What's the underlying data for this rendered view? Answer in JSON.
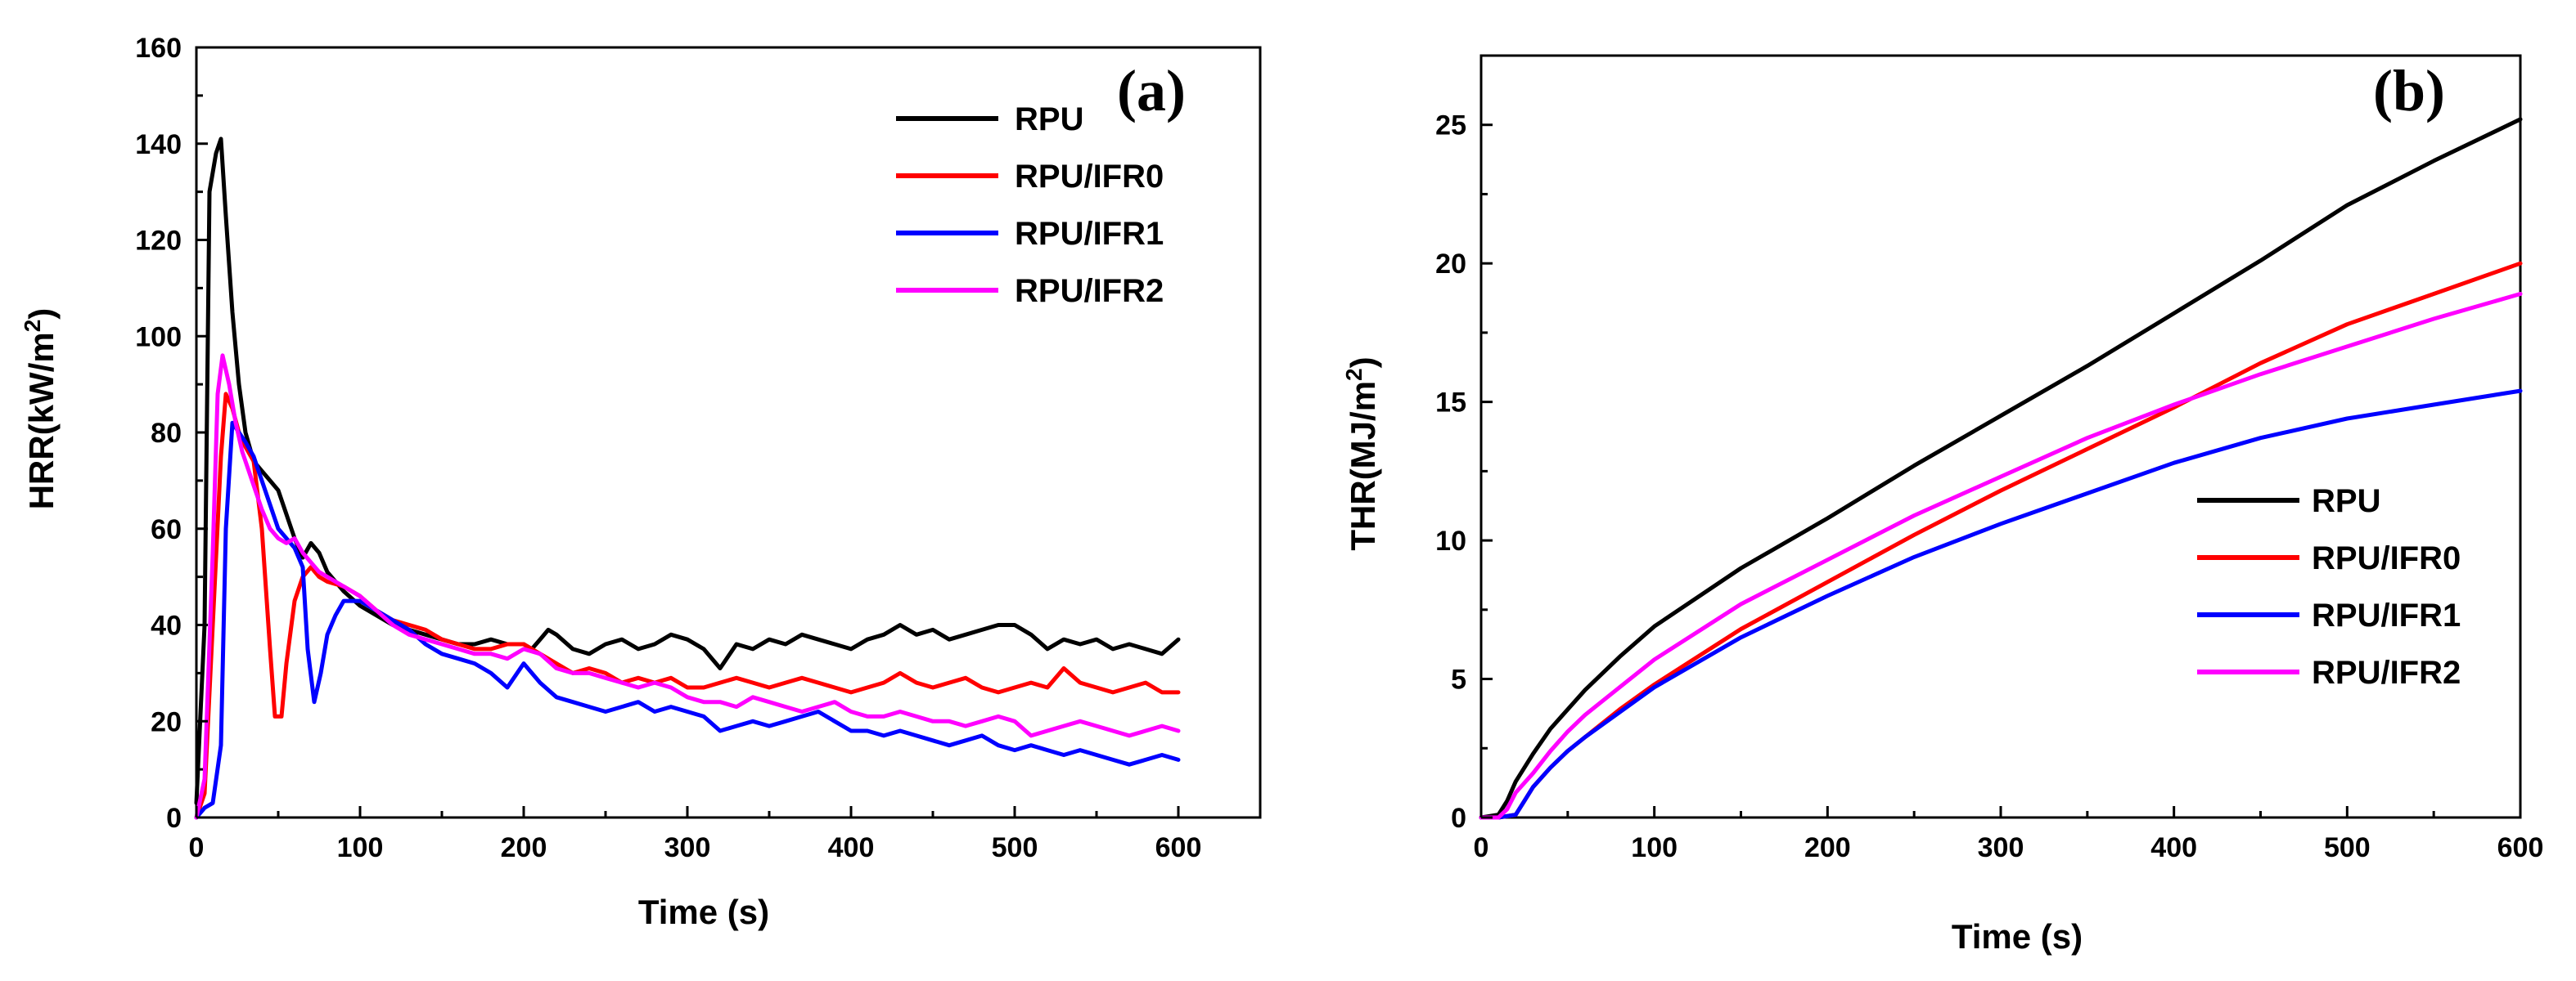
{
  "chart_data": [
    {
      "type": "line",
      "panel_label": "(a)",
      "xlabel": "Time (s)",
      "ylabel": "HRR(kW/m",
      "ylabel_sup": "2",
      "ylabel_end": ")",
      "xlim": [
        0,
        650
      ],
      "ylim": [
        0,
        160
      ],
      "xticks": [
        0,
        100,
        200,
        300,
        400,
        500,
        600
      ],
      "yticks": [
        0,
        20,
        40,
        60,
        80,
        100,
        120,
        140,
        160
      ],
      "legend_position": "top-right",
      "series": [
        {
          "name": "RPU",
          "color": "#000000",
          "x": [
            0,
            5,
            8,
            12,
            15,
            18,
            22,
            26,
            30,
            35,
            40,
            45,
            50,
            55,
            60,
            65,
            70,
            75,
            80,
            90,
            100,
            110,
            120,
            130,
            140,
            150,
            160,
            170,
            180,
            190,
            200,
            205,
            210,
            215,
            220,
            230,
            240,
            250,
            260,
            270,
            280,
            290,
            300,
            310,
            320,
            330,
            340,
            350,
            360,
            370,
            380,
            390,
            400,
            410,
            420,
            430,
            440,
            450,
            460,
            470,
            480,
            490,
            500,
            510,
            520,
            530,
            540,
            550,
            560,
            570,
            580,
            590,
            600
          ],
          "y": [
            3,
            40,
            130,
            138,
            141,
            125,
            105,
            90,
            80,
            74,
            72,
            70,
            68,
            63,
            58,
            54,
            57,
            55,
            51,
            47,
            44,
            42,
            40,
            39,
            38,
            37,
            36,
            36,
            37,
            36,
            36,
            35,
            37,
            39,
            38,
            35,
            34,
            36,
            37,
            35,
            36,
            38,
            37,
            35,
            31,
            36,
            35,
            37,
            36,
            38,
            37,
            36,
            35,
            37,
            38,
            40,
            38,
            39,
            37,
            38,
            39,
            40,
            40,
            38,
            35,
            37,
            36,
            37,
            35,
            36,
            35,
            34,
            37
          ]
        },
        {
          "name": "RPU/IFR0",
          "color": "#ff0000",
          "x": [
            0,
            5,
            10,
            15,
            18,
            22,
            26,
            30,
            35,
            40,
            45,
            48,
            52,
            55,
            60,
            65,
            70,
            75,
            80,
            90,
            100,
            110,
            120,
            130,
            140,
            150,
            160,
            170,
            180,
            190,
            200,
            210,
            220,
            230,
            240,
            250,
            260,
            270,
            280,
            290,
            300,
            310,
            320,
            330,
            340,
            350,
            360,
            370,
            380,
            390,
            400,
            410,
            420,
            430,
            440,
            450,
            460,
            470,
            480,
            490,
            500,
            510,
            520,
            530,
            540,
            550,
            560,
            570,
            580,
            590,
            600
          ],
          "y": [
            0,
            5,
            40,
            75,
            88,
            85,
            80,
            77,
            74,
            60,
            35,
            21,
            21,
            32,
            45,
            50,
            52,
            50,
            49,
            48,
            46,
            43,
            41,
            40,
            39,
            37,
            36,
            35,
            35,
            36,
            36,
            34,
            32,
            30,
            31,
            30,
            28,
            29,
            28,
            29,
            27,
            27,
            28,
            29,
            28,
            27,
            28,
            29,
            28,
            27,
            26,
            27,
            28,
            30,
            28,
            27,
            28,
            29,
            27,
            26,
            27,
            28,
            27,
            31,
            28,
            27,
            26,
            27,
            28,
            26,
            26
          ]
        },
        {
          "name": "RPU/IFR1",
          "color": "#0000ff",
          "x": [
            0,
            5,
            10,
            15,
            18,
            22,
            26,
            30,
            35,
            40,
            45,
            50,
            55,
            60,
            65,
            68,
            72,
            76,
            80,
            85,
            90,
            100,
            110,
            120,
            130,
            140,
            150,
            160,
            170,
            180,
            190,
            200,
            210,
            220,
            230,
            240,
            250,
            260,
            270,
            280,
            290,
            300,
            310,
            320,
            330,
            340,
            350,
            360,
            370,
            380,
            390,
            400,
            410,
            420,
            430,
            440,
            450,
            460,
            470,
            480,
            490,
            500,
            510,
            520,
            530,
            540,
            550,
            560,
            570,
            580,
            590,
            600
          ],
          "y": [
            0,
            2,
            3,
            15,
            60,
            82,
            80,
            78,
            75,
            70,
            65,
            60,
            58,
            56,
            52,
            35,
            24,
            30,
            38,
            42,
            45,
            45,
            43,
            41,
            39,
            36,
            34,
            33,
            32,
            30,
            27,
            32,
            28,
            25,
            24,
            23,
            22,
            23,
            24,
            22,
            23,
            22,
            21,
            18,
            19,
            20,
            19,
            20,
            21,
            22,
            20,
            18,
            18,
            17,
            18,
            17,
            16,
            15,
            16,
            17,
            15,
            14,
            15,
            14,
            13,
            14,
            13,
            12,
            11,
            12,
            13,
            12
          ]
        },
        {
          "name": "RPU/IFR2",
          "color": "#ff00ff",
          "x": [
            0,
            5,
            10,
            13,
            16,
            20,
            24,
            28,
            32,
            36,
            40,
            45,
            50,
            55,
            60,
            65,
            70,
            75,
            80,
            90,
            100,
            110,
            120,
            130,
            140,
            150,
            160,
            170,
            180,
            190,
            200,
            210,
            220,
            230,
            240,
            250,
            260,
            270,
            280,
            290,
            300,
            310,
            320,
            330,
            340,
            350,
            360,
            370,
            380,
            390,
            400,
            410,
            420,
            430,
            440,
            450,
            460,
            470,
            480,
            490,
            500,
            510,
            520,
            530,
            540,
            550,
            560,
            570,
            580,
            590,
            600
          ],
          "y": [
            0,
            8,
            55,
            88,
            96,
            90,
            82,
            76,
            72,
            68,
            64,
            60,
            58,
            57,
            58,
            55,
            53,
            51,
            50,
            48,
            46,
            43,
            40,
            38,
            37,
            36,
            35,
            34,
            34,
            33,
            35,
            34,
            31,
            30,
            30,
            29,
            28,
            27,
            28,
            27,
            25,
            24,
            24,
            23,
            25,
            24,
            23,
            22,
            23,
            24,
            22,
            21,
            21,
            22,
            21,
            20,
            20,
            19,
            20,
            21,
            20,
            17,
            18,
            19,
            20,
            19,
            18,
            17,
            18,
            19,
            18
          ]
        }
      ]
    },
    {
      "type": "line",
      "panel_label": "(b)",
      "xlabel": "Time (s)",
      "ylabel": "THR(MJ/m",
      "ylabel_sup": "2",
      "ylabel_end": ")",
      "xlim": [
        0,
        600
      ],
      "ylim": [
        0,
        27.5
      ],
      "xticks": [
        0,
        100,
        200,
        300,
        400,
        500,
        600
      ],
      "yticks": [
        0,
        5,
        10,
        15,
        20,
        25
      ],
      "legend_position": "middle-right",
      "series": [
        {
          "name": "RPU",
          "color": "#000000",
          "x": [
            0,
            10,
            15,
            20,
            30,
            40,
            50,
            60,
            80,
            100,
            150,
            200,
            250,
            300,
            350,
            400,
            450,
            500,
            550,
            600
          ],
          "y": [
            0,
            0.1,
            0.6,
            1.3,
            2.3,
            3.2,
            3.9,
            4.6,
            5.8,
            6.9,
            9.0,
            10.8,
            12.7,
            14.5,
            16.3,
            18.2,
            20.1,
            22.1,
            23.7,
            25.2
          ]
        },
        {
          "name": "RPU/IFR0",
          "color": "#ff0000",
          "x": [
            0,
            10,
            20,
            25,
            30,
            40,
            50,
            60,
            80,
            100,
            150,
            200,
            250,
            300,
            350,
            400,
            450,
            500,
            550,
            600
          ],
          "y": [
            0,
            0,
            0.1,
            0.6,
            1.1,
            1.8,
            2.4,
            2.9,
            3.9,
            4.8,
            6.8,
            8.5,
            10.2,
            11.8,
            13.3,
            14.8,
            16.4,
            17.8,
            18.9,
            20.0
          ]
        },
        {
          "name": "RPU/IFR1",
          "color": "#0000ff",
          "x": [
            0,
            10,
            20,
            25,
            30,
            40,
            50,
            60,
            80,
            100,
            150,
            200,
            250,
            300,
            350,
            400,
            450,
            500,
            550,
            600
          ],
          "y": [
            0,
            0,
            0.1,
            0.6,
            1.1,
            1.8,
            2.4,
            2.9,
            3.8,
            4.7,
            6.5,
            8.0,
            9.4,
            10.6,
            11.7,
            12.8,
            13.7,
            14.4,
            14.9,
            15.4
          ]
        },
        {
          "name": "RPU/IFR2",
          "color": "#ff00ff",
          "x": [
            0,
            10,
            15,
            20,
            30,
            40,
            50,
            60,
            80,
            100,
            150,
            200,
            250,
            300,
            350,
            400,
            450,
            500,
            550,
            600
          ],
          "y": [
            0,
            0,
            0.3,
            0.9,
            1.6,
            2.4,
            3.1,
            3.7,
            4.7,
            5.7,
            7.7,
            9.3,
            10.9,
            12.3,
            13.7,
            14.9,
            16.0,
            17.0,
            18.0,
            18.9
          ]
        }
      ]
    }
  ]
}
